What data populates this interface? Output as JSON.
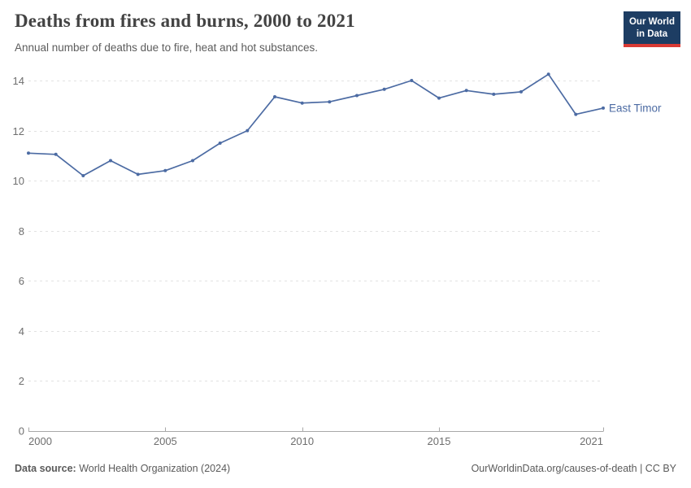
{
  "header": {
    "title": "Deaths from fires and burns, 2000 to 2021",
    "subtitle": "Annual number of deaths due to fire, heat and hot substances.",
    "logo": {
      "line1": "Our World",
      "line2": "in Data"
    }
  },
  "chart_data": {
    "type": "line",
    "title": "Deaths from fires and burns, 2000 to 2021",
    "xlabel": "",
    "ylabel": "",
    "x": [
      2000,
      2001,
      2002,
      2003,
      2004,
      2005,
      2006,
      2007,
      2008,
      2009,
      2010,
      2011,
      2012,
      2013,
      2014,
      2015,
      2016,
      2017,
      2018,
      2019,
      2020,
      2021
    ],
    "series": [
      {
        "name": "East Timor",
        "color": "#4c6ba3",
        "values": [
          11.1,
          11.05,
          10.2,
          10.8,
          10.25,
          10.4,
          10.8,
          11.5,
          12.0,
          13.35,
          13.1,
          13.15,
          13.4,
          13.65,
          14.0,
          13.3,
          13.6,
          13.45,
          13.55,
          14.25,
          12.65,
          12.9
        ]
      }
    ],
    "ylim": [
      0,
      14
    ],
    "yticks": [
      0,
      2,
      4,
      6,
      8,
      10,
      12,
      14
    ],
    "xticks": [
      2000,
      2005,
      2010,
      2015,
      2021
    ],
    "grid": "horizontal-dashed",
    "legend_position": "end-of-line-label",
    "markers": true
  },
  "footer": {
    "source_label": "Data source:",
    "source_value": " World Health Organization (2024)",
    "attribution": "OurWorldinData.org/causes-of-death | CC BY"
  },
  "colors": {
    "series_blue": "#4c6ba3",
    "logo_navy": "#1d3d63",
    "logo_red": "#d93a34",
    "gridline": "#e2e2e2",
    "axis": "#a8a8a8",
    "tick_label": "#6e6e6e",
    "title_text": "#434343",
    "muted_text": "#5a5a5a"
  }
}
